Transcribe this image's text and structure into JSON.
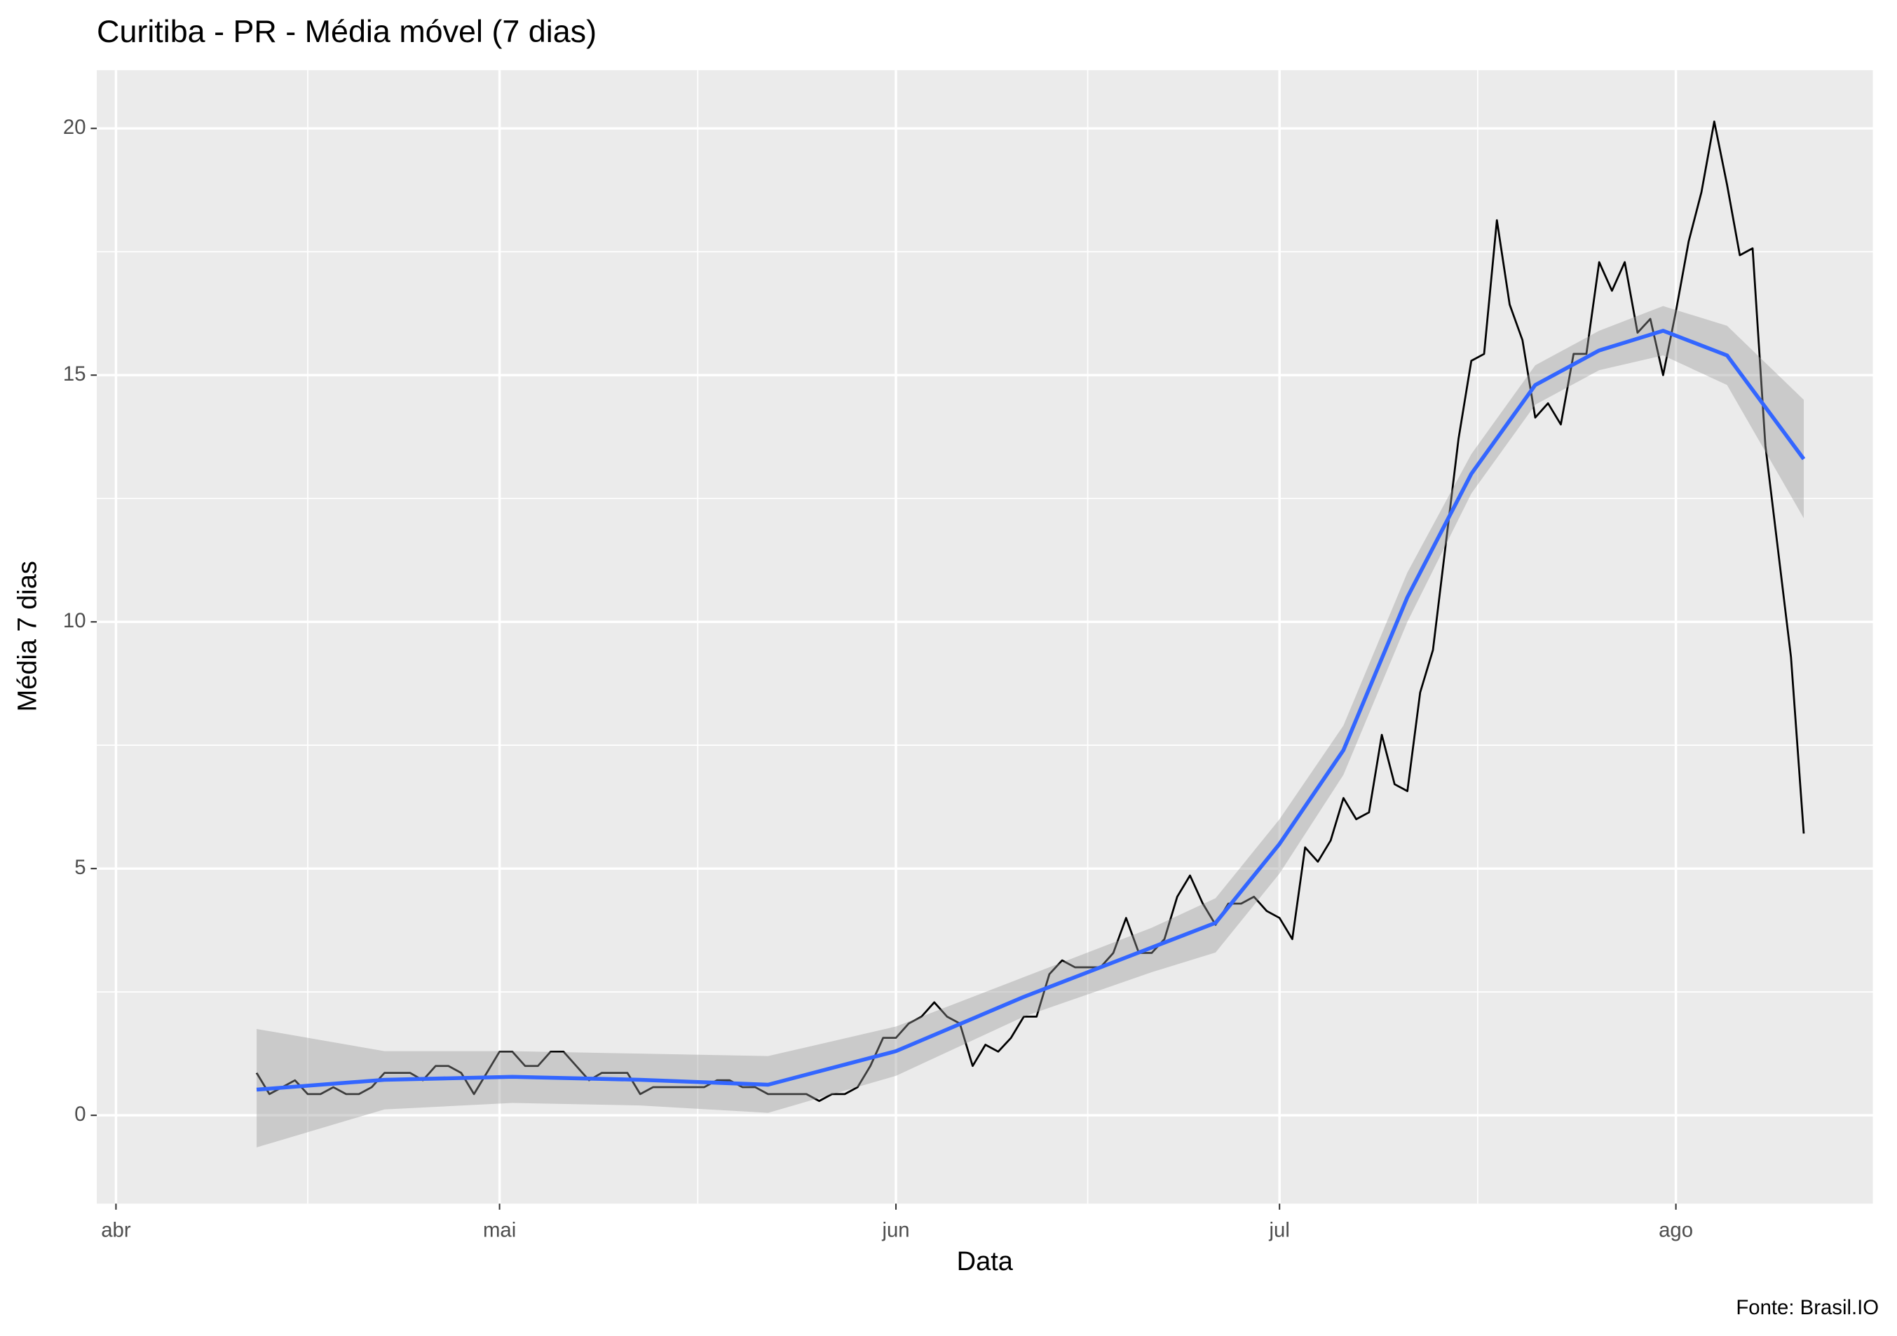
{
  "chart_data": {
    "type": "line",
    "title": "Curitiba - PR - Média móvel (7 dias)",
    "x_label": "Data",
    "y_label": "Média 7 dias",
    "caption": "Fonte: Brasil.IO",
    "xlim": [
      -1.5,
      137.4
    ],
    "ylim": [
      -1.79,
      21.18
    ],
    "xticks": [
      {
        "value": 0,
        "label": "abr"
      },
      {
        "value": 30,
        "label": "mai"
      },
      {
        "value": 61,
        "label": "jun"
      },
      {
        "value": 91,
        "label": "jul"
      },
      {
        "value": 122,
        "label": "ago"
      }
    ],
    "yticks": [
      0,
      5,
      10,
      15,
      20
    ],
    "grid": true,
    "x": [
      11,
      12,
      13,
      14,
      15,
      16,
      17,
      18,
      19,
      20,
      21,
      22,
      23,
      24,
      25,
      26,
      27,
      28,
      29,
      30,
      31,
      32,
      33,
      34,
      35,
      36,
      37,
      38,
      39,
      40,
      41,
      42,
      43,
      44,
      45,
      46,
      47,
      48,
      49,
      50,
      51,
      52,
      53,
      54,
      55,
      56,
      57,
      58,
      59,
      60,
      61,
      62,
      63,
      64,
      65,
      66,
      67,
      68,
      69,
      70,
      71,
      72,
      73,
      74,
      75,
      76,
      77,
      78,
      79,
      80,
      81,
      82,
      83,
      84,
      85,
      86,
      87,
      88,
      89,
      90,
      91,
      92,
      93,
      94,
      95,
      96,
      97,
      98,
      99,
      100,
      101,
      102,
      103,
      104,
      105,
      106,
      107,
      108,
      109,
      110,
      111,
      112,
      113,
      114,
      115,
      116,
      117,
      118,
      119,
      120,
      121,
      122,
      123,
      124,
      125,
      126,
      127,
      128,
      129,
      130,
      131,
      132
    ],
    "series": [
      {
        "color": "#000000",
        "values": [
          0.86,
          0.43,
          0.57,
          0.71,
          0.43,
          0.43,
          0.57,
          0.43,
          0.43,
          0.57,
          0.86,
          0.86,
          0.86,
          0.71,
          1.0,
          1.0,
          0.86,
          0.43,
          0.86,
          1.29,
          1.29,
          1.0,
          1.0,
          1.29,
          1.29,
          1.0,
          0.71,
          0.86,
          0.86,
          0.86,
          0.43,
          0.57,
          0.57,
          0.57,
          0.57,
          0.57,
          0.71,
          0.71,
          0.57,
          0.57,
          0.43,
          0.43,
          0.43,
          0.43,
          0.29,
          0.43,
          0.43,
          0.57,
          1.0,
          1.57,
          1.57,
          1.86,
          2.0,
          2.29,
          2.0,
          1.86,
          1.0,
          1.43,
          1.29,
          1.57,
          2.0,
          2.0,
          2.86,
          3.14,
          3.0,
          3.0,
          3.0,
          3.29,
          4.0,
          3.29,
          3.29,
          3.57,
          4.43,
          4.86,
          4.29,
          3.86,
          4.29,
          4.29,
          4.43,
          4.14,
          4.0,
          3.57,
          5.43,
          5.14,
          5.57,
          6.43,
          6.0,
          6.14,
          7.71,
          6.71,
          6.57,
          8.57,
          9.43,
          11.57,
          13.71,
          15.29,
          15.43,
          18.14,
          16.43,
          15.71,
          14.14,
          14.43,
          14.0,
          15.43,
          15.43,
          17.29,
          16.71,
          17.29,
          15.86,
          16.14,
          15.0,
          16.29,
          17.71,
          18.71,
          20.14,
          18.86,
          17.43,
          17.57,
          13.57,
          11.43,
          9.29,
          5.71
        ]
      }
    ],
    "smooth": {
      "color": "#3366ff",
      "ribbon_color": "#999999",
      "x": [
        11,
        21,
        31,
        41,
        51,
        61,
        71,
        81,
        86,
        91,
        96,
        101,
        106,
        111,
        116,
        121,
        126,
        132
      ],
      "values": [
        0.52,
        0.72,
        0.78,
        0.72,
        0.62,
        1.3,
        2.4,
        3.4,
        3.9,
        5.5,
        7.4,
        10.5,
        13.0,
        14.8,
        15.5,
        15.9,
        15.4,
        13.3
      ],
      "lower": [
        -0.65,
        0.12,
        0.25,
        0.2,
        0.05,
        0.8,
        2.0,
        2.9,
        3.3,
        4.9,
        6.9,
        10.0,
        12.6,
        14.4,
        15.1,
        15.4,
        14.8,
        12.1
      ],
      "upper": [
        1.75,
        1.3,
        1.3,
        1.25,
        1.2,
        1.8,
        2.8,
        3.8,
        4.4,
        6.0,
        7.9,
        11.0,
        13.4,
        15.2,
        15.9,
        16.4,
        16.0,
        14.5
      ]
    }
  }
}
